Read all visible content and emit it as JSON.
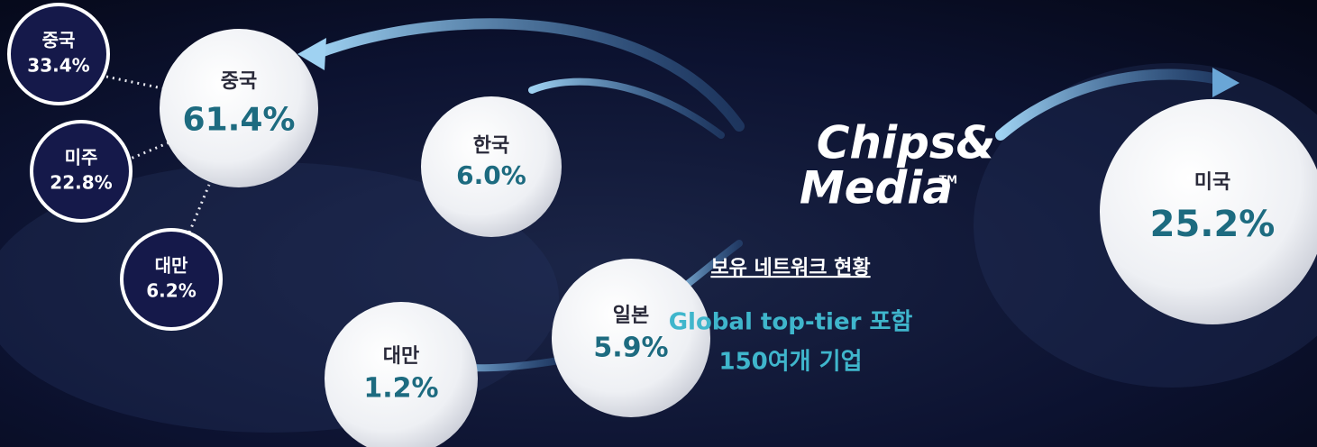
{
  "logo": {
    "line1": "Chips&",
    "line2": "Media",
    "mark": "TM"
  },
  "network": {
    "title": "보유 네트워크 현황",
    "lines": [
      "Global top-tier 포함",
      "150여개  기업"
    ]
  },
  "bubbles": [
    {
      "label": "중국",
      "value": "61.4%"
    },
    {
      "label": "한국",
      "value": "6.0%"
    },
    {
      "label": "일본",
      "value": "5.9%"
    },
    {
      "label": "대만",
      "value": "1.2%"
    },
    {
      "label": "미국",
      "value": "25.2%"
    }
  ],
  "china_breakdown": [
    {
      "label": "중국",
      "value": "33.4%"
    },
    {
      "label": "미주",
      "value": "22.8%"
    },
    {
      "label": "대만",
      "value": "6.2%"
    }
  ]
}
